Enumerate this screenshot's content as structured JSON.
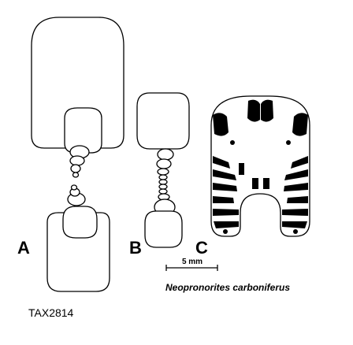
{
  "panels": {
    "a_label": "A",
    "b_label": "B",
    "c_label": "C"
  },
  "scale_bar": {
    "label": "5 mm"
  },
  "species_name": "Neopronorites carboniferus",
  "catalog_number": "TAX2814",
  "colors": {
    "ink": "#000000",
    "background": "#ffffff"
  }
}
